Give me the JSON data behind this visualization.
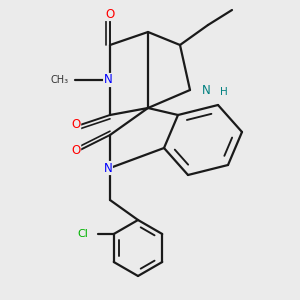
{
  "bg": "#ebebeb",
  "bond_color": "#1a1a1a",
  "O_color": "#ff0000",
  "N_color": "#0000ff",
  "NH_color": "#008080",
  "Cl_color": "#00b300",
  "C_color": "#1a1a1a",
  "lw": 1.6,
  "xlim": [
    0,
    3.0
  ],
  "ylim": [
    0,
    3.0
  ]
}
